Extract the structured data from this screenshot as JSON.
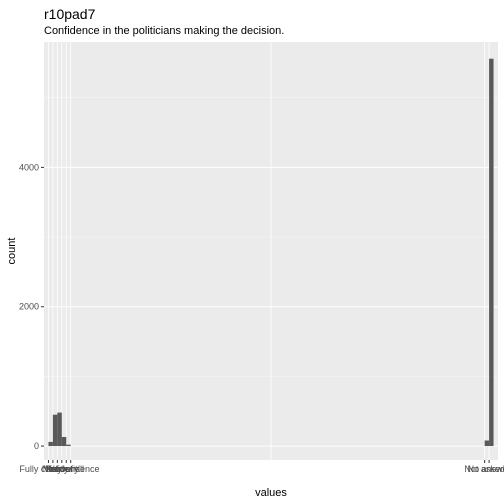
{
  "chart_data": {
    "type": "bar",
    "title": "r10pad7",
    "subtitle": "Confidence in the politicians making the decision.",
    "xlabel": "values",
    "ylabel": "count",
    "ylim": [
      0,
      5800
    ],
    "y_ticks": [
      0,
      2000,
      4000
    ],
    "x_tick_labels_left": [
      "Fully confident",
      "Very",
      "Fairly",
      "Not very",
      "Not at all",
      "No confidence"
    ],
    "x_tick_labels_right": [
      "Not asked",
      "No answer"
    ],
    "bars": [
      {
        "position": 0.5,
        "value": 60
      },
      {
        "position": 1.5,
        "value": 450
      },
      {
        "position": 2.5,
        "value": 480
      },
      {
        "position": 3.5,
        "value": 130
      },
      {
        "position": 4.5,
        "value": 20
      },
      {
        "position": 98.5,
        "value": 80
      },
      {
        "position": 99.5,
        "value": 5560
      }
    ],
    "x_range": [
      -1,
      101
    ],
    "bar_width": 1,
    "grid": true
  }
}
